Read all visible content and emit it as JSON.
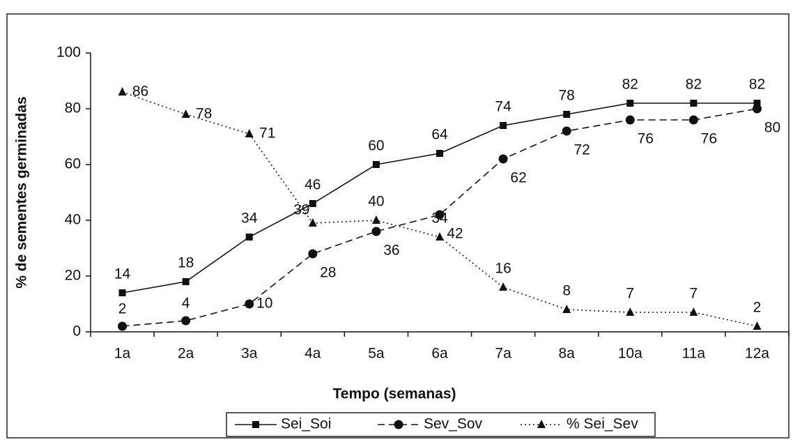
{
  "chart_data": {
    "type": "line",
    "x_label": "Tempo (semanas)",
    "y_label": "% de sementes germinadas",
    "categories": [
      "1a",
      "2a",
      "3a",
      "4a",
      "5a",
      "6a",
      "7a",
      "8a",
      "10a",
      "11a",
      "12a"
    ],
    "series": [
      {
        "name": "Sei_Soi",
        "color": "#111111",
        "marker": "square",
        "line_style": "solid",
        "values": [
          14,
          18,
          34,
          46,
          60,
          64,
          74,
          78,
          82,
          82,
          82
        ]
      },
      {
        "name": "Sev_Sov",
        "color": "#111111",
        "marker": "circle",
        "line_style": "dashed",
        "values": [
          2,
          4,
          10,
          28,
          36,
          42,
          62,
          72,
          76,
          76,
          80
        ]
      },
      {
        "name": "% Sei_Sev",
        "color": "#111111",
        "marker": "triangle",
        "line_style": "dotted",
        "values": [
          86,
          78,
          71,
          39,
          40,
          34,
          16,
          8,
          7,
          7,
          2
        ]
      }
    ],
    "ylim": [
      0,
      100
    ],
    "yticks": [
      0,
      20,
      40,
      60,
      80,
      100
    ],
    "legend": "bottom"
  }
}
